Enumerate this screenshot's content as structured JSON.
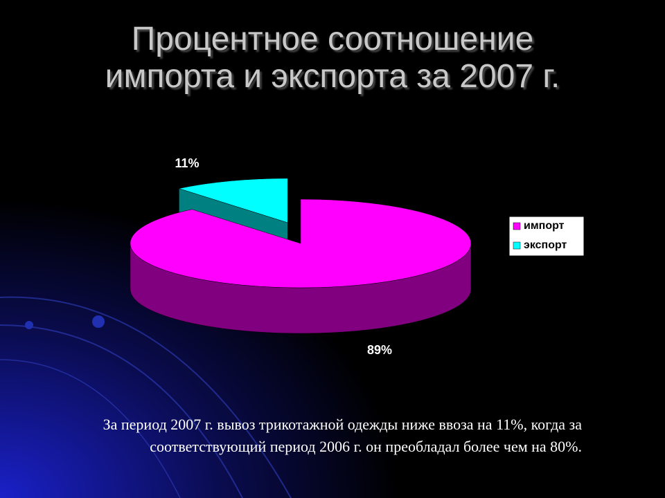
{
  "chart_data": {
    "type": "pie",
    "title": "Процентное соотношение импорта и экспорта за 2007 г.",
    "categories": [
      "импорт",
      "экспорт"
    ],
    "values": [
      89,
      11
    ],
    "value_labels": [
      "89%",
      "11%"
    ],
    "colors": [
      "#ff00ff",
      "#00ffff"
    ],
    "side_colors": [
      "#800080",
      "#008080"
    ],
    "legend": "right"
  },
  "caption": "За период 2007 г. вывоз трикотажной одежды ниже ввоза на 11%, когда за соответствующий период 2006 г. он преобладал более чем на 80%."
}
